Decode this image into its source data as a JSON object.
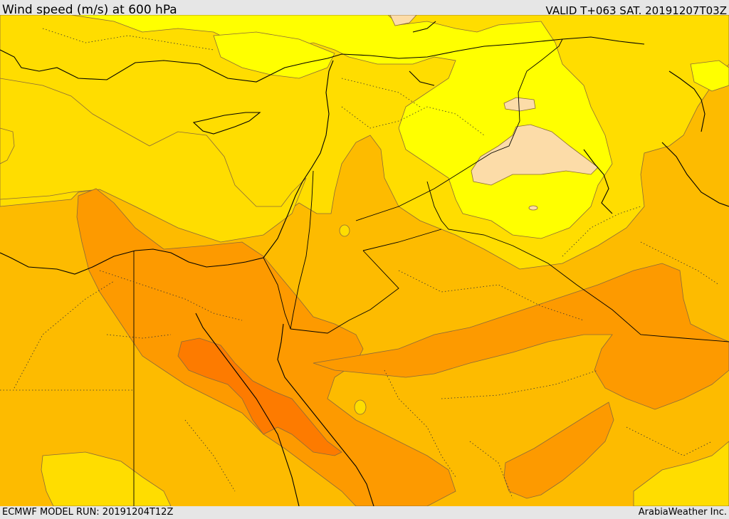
{
  "header": {
    "title": "Wind speed (m/s) at 600 hPa",
    "valid_time": "VALID T+063 SAT. 20191207T03Z"
  },
  "footer": {
    "model_run": "ECMWF MODEL RUN: 20191204T12Z",
    "credit": "ArabiaWeather Inc."
  },
  "map": {
    "variable": "wind speed",
    "level": "600 hPa",
    "colors": {
      "pale_peach": "#fcdca8",
      "yellow": "#ffff00",
      "gold": "#ffdd00",
      "amber": "#fdbb00",
      "orange": "#fd9a00",
      "dark_orange": "#fd7b00",
      "coastline": "#000000",
      "border": "#000000",
      "contour": "#7a5a3a"
    }
  }
}
